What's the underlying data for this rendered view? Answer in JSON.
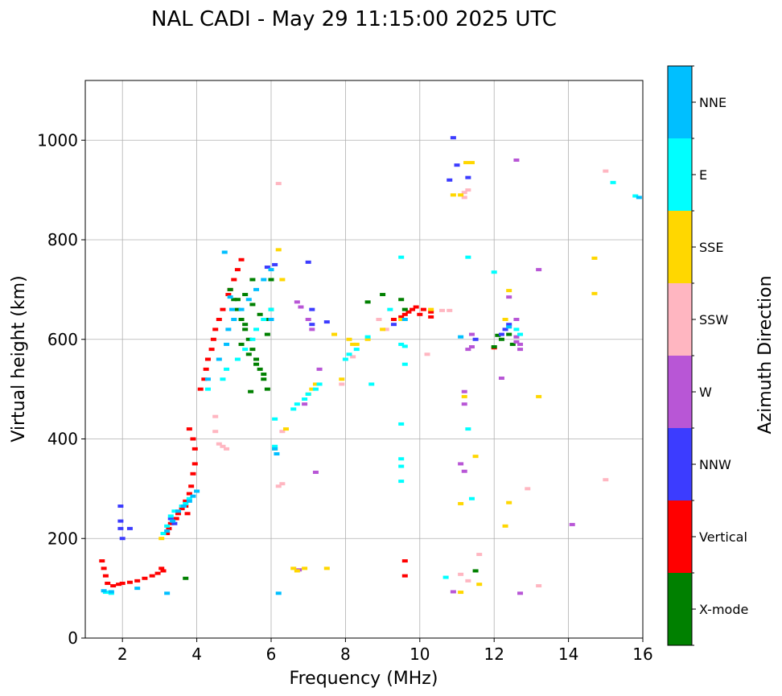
{
  "chart_data": {
    "type": "scatter",
    "title": "NAL CADI - May 29 11:15:00 2025 UTC",
    "xlabel": "Frequency (MHz)",
    "ylabel": "Virtual height (km)",
    "xlim": [
      1,
      16
    ],
    "ylim": [
      0,
      1120
    ],
    "xticks": [
      2,
      4,
      6,
      8,
      10,
      12,
      14,
      16
    ],
    "yticks": [
      0,
      200,
      400,
      600,
      800,
      1000
    ],
    "grid": true,
    "colorbar": {
      "label": "Azimuth Direction",
      "categories": [
        {
          "name": "X-mode",
          "color": "#008000"
        },
        {
          "name": "Vertical",
          "color": "#ff0000"
        },
        {
          "name": "NNW",
          "color": "#3c3cff"
        },
        {
          "name": "W",
          "color": "#b856d6"
        },
        {
          "name": "SSW",
          "color": "#ffb6c1"
        },
        {
          "name": "SSE",
          "color": "#ffd700"
        },
        {
          "name": "E",
          "color": "#00ffff"
        },
        {
          "name": "NNE",
          "color": "#00bfff"
        }
      ]
    },
    "series": [
      {
        "name": "Vertical",
        "x": [
          1.45,
          1.5,
          1.55,
          1.6,
          1.75,
          1.9,
          2.0,
          2.2,
          2.4,
          2.6,
          2.8,
          2.95,
          3.05,
          3.1,
          3.2,
          3.25,
          3.3,
          3.45,
          3.5,
          3.6,
          3.7,
          3.8,
          3.85,
          3.9,
          3.95,
          3.95,
          3.9,
          3.8,
          3.75,
          3.7,
          4.1,
          4.2,
          4.25,
          4.3,
          4.4,
          4.45,
          4.5,
          4.6,
          4.7,
          4.85,
          4.9,
          5.0,
          5.1,
          5.2,
          9.3,
          9.5,
          9.6,
          9.7,
          9.8,
          9.9,
          10.0,
          10.1,
          10.3,
          10.3,
          9.6,
          9.6,
          12.0
        ],
        "y": [
          155,
          140,
          125,
          110,
          105,
          108,
          110,
          112,
          115,
          120,
          125,
          130,
          140,
          135,
          210,
          220,
          230,
          240,
          250,
          260,
          275,
          290,
          305,
          330,
          350,
          380,
          400,
          420,
          250,
          265,
          500,
          520,
          540,
          560,
          580,
          600,
          620,
          640,
          660,
          690,
          700,
          720,
          740,
          760,
          640,
          645,
          650,
          655,
          660,
          665,
          650,
          660,
          655,
          645,
          155,
          125,
          583
        ]
      },
      {
        "name": "X-mode",
        "x": [
          3.7,
          4.9,
          5.0,
          5.1,
          5.2,
          5.3,
          5.4,
          5.5,
          5.6,
          5.7,
          5.8,
          5.9,
          6.0,
          5.3,
          5.5,
          5.7,
          5.9,
          5.2,
          5.4,
          5.6,
          5.8,
          5.1,
          5.5,
          5.9,
          6.0,
          5.3,
          5.45,
          8.6,
          9.0,
          9.5,
          9.6,
          12.0,
          12.2,
          12.4,
          12.5,
          11.5,
          12.1
        ],
        "y": [
          120,
          700,
          680,
          660,
          640,
          620,
          600,
          580,
          560,
          540,
          520,
          500,
          720,
          690,
          670,
          650,
          610,
          590,
          570,
          550,
          530,
          680,
          720,
          640,
          660,
          630,
          495,
          675,
          690,
          680,
          660,
          585,
          600,
          610,
          590,
          135,
          608
        ]
      },
      {
        "name": "NNW",
        "x": [
          1.95,
          1.95,
          1.95,
          2.0,
          2.2,
          3.3,
          7.1,
          7.5,
          9.3,
          10.9,
          11.3,
          10.8,
          12.2,
          12.3,
          12.4,
          11.0,
          11.5,
          5.9,
          6.1,
          7.0,
          7.1,
          3.4
        ],
        "y": [
          265,
          235,
          220,
          200,
          220,
          240,
          630,
          635,
          630,
          1005,
          925,
          920,
          610,
          620,
          630,
          950,
          600,
          745,
          750,
          755,
          660,
          230
        ]
      },
      {
        "name": "W",
        "x": [
          6.7,
          6.8,
          7.0,
          7.1,
          11.2,
          11.2,
          11.1,
          11.2,
          11.3,
          11.4,
          12.6,
          12.6,
          12.7,
          12.7,
          12.6,
          12.4,
          11.4,
          13.2,
          14.1,
          12.7,
          10.9,
          12.2,
          12.6,
          6.75,
          7.3,
          7.2,
          6.9
        ],
        "y": [
          675,
          665,
          640,
          620,
          495,
          470,
          350,
          335,
          580,
          585,
          605,
          595,
          590,
          580,
          960,
          685,
          610,
          740,
          228,
          90,
          93,
          522,
          640,
          137,
          540,
          333,
          470
        ]
      },
      {
        "name": "SSW",
        "x": [
          4.5,
          4.5,
          4.6,
          4.7,
          4.8,
          6.2,
          6.3,
          6.2,
          6.3,
          8.9,
          9.1,
          10.8,
          11.1,
          11.3,
          11.6,
          12.9,
          13.2,
          15.0,
          15.0,
          10.6,
          10.2,
          8.2,
          7.9,
          11.2,
          11.3,
          11.2
        ],
        "y": [
          445,
          415,
          390,
          385,
          380,
          913,
          415,
          305,
          310,
          640,
          620,
          658,
          128,
          115,
          168,
          300,
          105,
          938,
          318,
          658,
          570,
          565,
          510,
          885,
          900,
          895
        ]
      },
      {
        "name": "SSE",
        "x": [
          3.05,
          6.1,
          6.3,
          6.2,
          7.0,
          7.1,
          7.2,
          6.6,
          6.7,
          6.9,
          7.5,
          7.7,
          8.1,
          8.2,
          8.3,
          8.6,
          9.0,
          9.5,
          10.3,
          11.1,
          11.2,
          11.25,
          11.4,
          11.5,
          11.6,
          11.1,
          12.3,
          12.4,
          13.2,
          14.7,
          14.7,
          12.4,
          12.3,
          10.9,
          11.1,
          6.4,
          7.9
        ],
        "y": [
          200,
          380,
          720,
          780,
          490,
          500,
          510,
          140,
          135,
          140,
          140,
          610,
          600,
          590,
          590,
          600,
          620,
          640,
          660,
          270,
          485,
          955,
          955,
          365,
          108,
          92,
          225,
          272,
          485,
          763,
          692,
          698,
          640,
          890,
          890,
          420,
          520
        ]
      },
      {
        "name": "E",
        "x": [
          1.55,
          1.7,
          3.1,
          3.2,
          3.3,
          3.4,
          3.6,
          3.7,
          3.8,
          4.3,
          4.7,
          4.8,
          5.1,
          5.3,
          5.5,
          5.6,
          5.8,
          6.0,
          6.1,
          6.1,
          6.6,
          6.7,
          6.9,
          7.0,
          7.2,
          7.3,
          8.0,
          8.1,
          8.3,
          8.6,
          8.7,
          9.2,
          9.5,
          9.5,
          9.6,
          9.5,
          9.5,
          9.5,
          9.5,
          10.7,
          11.3,
          11.4,
          11.3,
          12.0,
          12.6,
          12.7,
          15.2,
          15.8,
          9.6
        ],
        "y": [
          92,
          90,
          210,
          225,
          245,
          255,
          265,
          270,
          280,
          500,
          520,
          540,
          560,
          580,
          600,
          620,
          640,
          660,
          440,
          385,
          460,
          470,
          480,
          490,
          500,
          510,
          560,
          570,
          580,
          605,
          510,
          660,
          765,
          590,
          550,
          430,
          360,
          345,
          315,
          122,
          765,
          280,
          420,
          735,
          620,
          610,
          915,
          888,
          586
        ]
      },
      {
        "name": "NNE",
        "x": [
          1.5,
          1.7,
          2.4,
          3.2,
          3.35,
          3.5,
          3.65,
          3.8,
          3.9,
          4.0,
          4.3,
          4.6,
          4.8,
          4.85,
          5.0,
          5.2,
          5.4,
          5.6,
          5.8,
          6.0,
          6.1,
          6.2,
          6.0,
          4.75,
          4.9,
          4.95,
          3.2,
          6.15,
          9.6,
          12.4,
          11.1,
          15.9
        ],
        "y": [
          95,
          93,
          100,
          215,
          235,
          255,
          265,
          275,
          285,
          295,
          520,
          560,
          590,
          620,
          640,
          660,
          680,
          700,
          720,
          740,
          380,
          90,
          640,
          775,
          685,
          660,
          90,
          370,
          640,
          625,
          605,
          885
        ]
      }
    ]
  }
}
